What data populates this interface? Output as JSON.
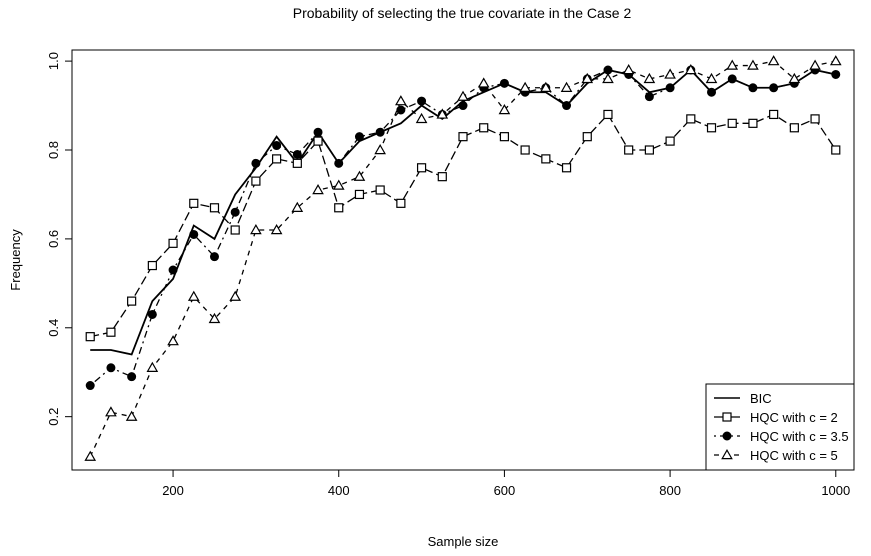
{
  "chart_data": {
    "type": "line",
    "title": "Probability of selecting the true covariate in the Case 2",
    "xlabel": "Sample size",
    "ylabel": "Frequency",
    "xlim": [
      78,
      1022
    ],
    "ylim": [
      0.08,
      1.025
    ],
    "x_ticks": [
      200,
      400,
      600,
      800,
      1000
    ],
    "x_tick_labels": [
      "200",
      "400",
      "600",
      "800",
      "1000"
    ],
    "y_ticks": [
      0.2,
      0.4,
      0.6,
      0.8,
      1.0
    ],
    "y_tick_labels": [
      "0.2",
      "0.4",
      "0.6",
      "0.8",
      "1.0"
    ],
    "grid": false,
    "legend_position": "bottom-right",
    "x": [
      100,
      125,
      150,
      175,
      200,
      225,
      250,
      275,
      300,
      325,
      350,
      375,
      400,
      425,
      450,
      475,
      500,
      525,
      550,
      575,
      600,
      625,
      650,
      675,
      700,
      725,
      750,
      775,
      800,
      825,
      850,
      875,
      900,
      925,
      950,
      975,
      1000
    ],
    "series": [
      {
        "name": "BIC",
        "line_style": "solid",
        "marker": "none",
        "values": [
          0.35,
          0.35,
          0.34,
          0.46,
          0.51,
          0.63,
          0.6,
          0.7,
          0.76,
          0.83,
          0.77,
          0.84,
          0.77,
          0.82,
          0.84,
          0.86,
          0.9,
          0.87,
          0.91,
          0.93,
          0.95,
          0.93,
          0.93,
          0.9,
          0.95,
          0.98,
          0.97,
          0.93,
          0.94,
          0.98,
          0.93,
          0.96,
          0.94,
          0.94,
          0.95,
          0.98,
          0.97
        ]
      },
      {
        "name": "HQC with c = 2",
        "line_style": "longdash",
        "marker": "open-square",
        "values": [
          0.38,
          0.39,
          0.46,
          0.54,
          0.59,
          0.68,
          0.67,
          0.62,
          0.73,
          0.78,
          0.77,
          0.82,
          0.67,
          0.7,
          0.71,
          0.68,
          0.76,
          0.74,
          0.83,
          0.85,
          0.83,
          0.8,
          0.78,
          0.76,
          0.83,
          0.88,
          0.8,
          0.8,
          0.82,
          0.87,
          0.85,
          0.86,
          0.86,
          0.88,
          0.85,
          0.87,
          0.8
        ]
      },
      {
        "name": "HQC with c = 3.5",
        "line_style": "dotdash",
        "marker": "filled-circle",
        "values": [
          0.27,
          0.31,
          0.29,
          0.43,
          0.53,
          0.61,
          0.56,
          0.66,
          0.77,
          0.81,
          0.79,
          0.84,
          0.77,
          0.83,
          0.84,
          0.89,
          0.91,
          0.88,
          0.9,
          0.94,
          0.95,
          0.93,
          0.94,
          0.9,
          0.96,
          0.98,
          0.97,
          0.92,
          0.94,
          0.98,
          0.93,
          0.96,
          0.94,
          0.94,
          0.95,
          0.98,
          0.97
        ]
      },
      {
        "name": "HQC with c = 5",
        "line_style": "dashed",
        "marker": "open-triangle",
        "values": [
          0.11,
          0.21,
          0.2,
          0.31,
          0.37,
          0.47,
          0.42,
          0.47,
          0.62,
          0.62,
          0.67,
          0.71,
          0.72,
          0.74,
          0.8,
          0.91,
          0.87,
          0.88,
          0.92,
          0.95,
          0.89,
          0.94,
          0.94,
          0.94,
          0.96,
          0.96,
          0.98,
          0.96,
          0.97,
          0.98,
          0.96,
          0.99,
          0.99,
          1.0,
          0.96,
          0.99,
          1.0
        ]
      }
    ]
  }
}
